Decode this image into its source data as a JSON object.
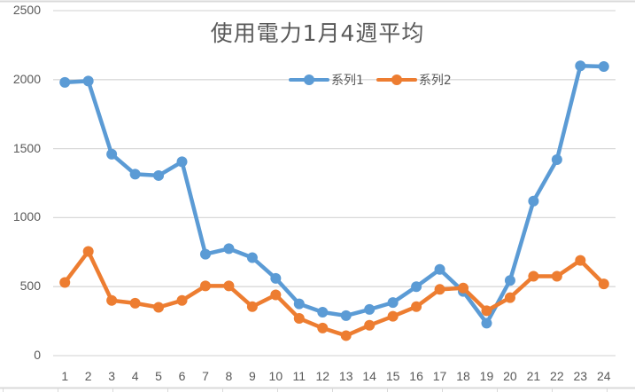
{
  "chart_data": {
    "type": "line",
    "title": "使用電力1月4週平均",
    "xlabel": "",
    "ylabel": "",
    "ylim": [
      0,
      2500
    ],
    "yticks": [
      0,
      500,
      1000,
      1500,
      2000,
      2500
    ],
    "grid": true,
    "legend_position": "top",
    "categories": [
      "1",
      "2",
      "3",
      "4",
      "5",
      "6",
      "7",
      "8",
      "9",
      "10",
      "11",
      "12",
      "13",
      "14",
      "15",
      "16",
      "17",
      "18",
      "19",
      "20",
      "21",
      "22",
      "23",
      "24"
    ],
    "series": [
      {
        "name": "系列1",
        "color": "#5B9BD5",
        "values": [
          1980,
          1990,
          1460,
          1315,
          1305,
          1405,
          735,
          775,
          710,
          560,
          375,
          315,
          290,
          335,
          385,
          500,
          625,
          465,
          235,
          545,
          1120,
          1420,
          2100,
          2095
        ]
      },
      {
        "name": "系列2",
        "color": "#ED7D31",
        "values": [
          530,
          755,
          400,
          380,
          350,
          400,
          505,
          505,
          355,
          440,
          270,
          200,
          145,
          220,
          285,
          355,
          480,
          490,
          325,
          420,
          575,
          575,
          690,
          520
        ]
      }
    ]
  },
  "legend": {
    "items": [
      {
        "label": "系列1",
        "color": "#5B9BD5"
      },
      {
        "label": "系列2",
        "color": "#ED7D31"
      }
    ]
  }
}
